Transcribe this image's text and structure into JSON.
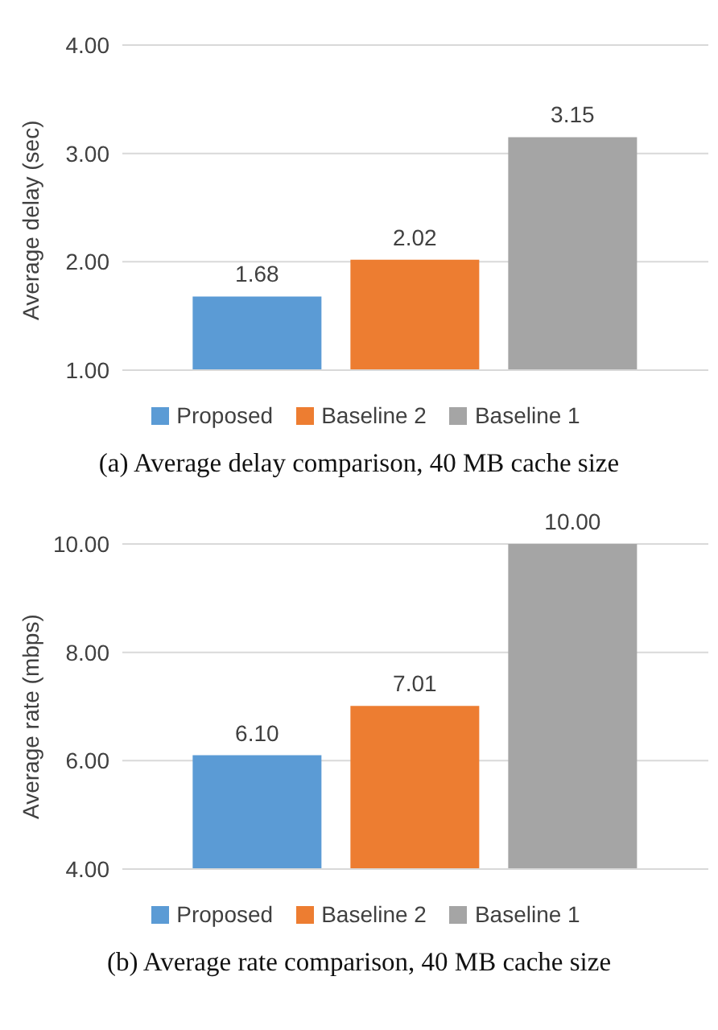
{
  "chart_data": [
    {
      "type": "bar",
      "categories": [
        null
      ],
      "ylabel": "Average delay (sec)",
      "series": [
        {
          "name": "Proposed",
          "color": "#5b9bd5",
          "values": [
            1.68
          ],
          "value_labels": [
            "1.68"
          ]
        },
        {
          "name": "Baseline 2",
          "color": "#ed7d31",
          "values": [
            2.02
          ],
          "value_labels": [
            "2.02"
          ]
        },
        {
          "name": "Baseline 1",
          "color": "#a5a5a5",
          "values": [
            3.15
          ],
          "value_labels": [
            "3.15"
          ]
        }
      ],
      "ylim": [
        1,
        4
      ],
      "yticks": [
        {
          "value": 1,
          "label": "1.00"
        },
        {
          "value": 2,
          "label": "2.00"
        },
        {
          "value": 3,
          "label": "3.00"
        },
        {
          "value": 4,
          "label": "4.00"
        }
      ],
      "grid": "y",
      "legend": "bottom",
      "annotations": [
        "(a) Average delay comparison, 40 MB cache size"
      ]
    },
    {
      "type": "bar",
      "categories": [
        null
      ],
      "ylabel": "Average rate (mbps)",
      "series": [
        {
          "name": "Proposed",
          "color": "#5b9bd5",
          "values": [
            6.1
          ],
          "value_labels": [
            "6.10"
          ]
        },
        {
          "name": "Baseline 2",
          "color": "#ed7d31",
          "values": [
            7.01
          ],
          "value_labels": [
            "7.01"
          ]
        },
        {
          "name": "Baseline 1",
          "color": "#a5a5a5",
          "values": [
            10
          ],
          "value_labels": [
            "10.00"
          ]
        }
      ],
      "ylim": [
        4,
        10
      ],
      "yticks": [
        {
          "value": 4,
          "label": "4.00"
        },
        {
          "value": 6,
          "label": "6.00"
        },
        {
          "value": 8,
          "label": "8.00"
        },
        {
          "value": 10,
          "label": "10.00"
        }
      ],
      "grid": "y",
      "legend": "bottom",
      "annotations": [
        "(b) Average rate comparison, 40 MB cache size"
      ]
    }
  ]
}
